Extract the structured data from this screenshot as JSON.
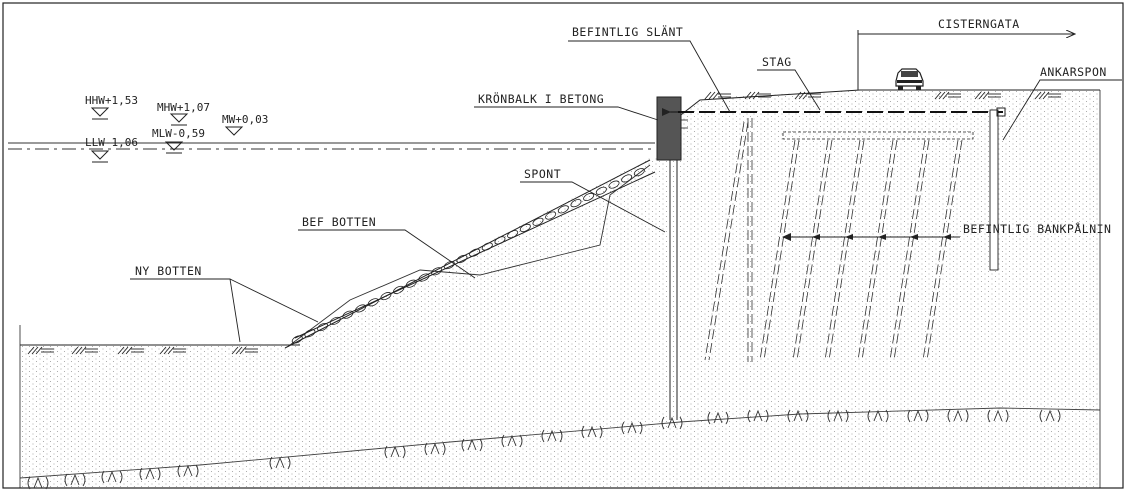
{
  "labels": {
    "cisterngata": "CISTERNGATA",
    "befintlig_slant": "BEFINTLIG SLÄNT",
    "stag": "STAG",
    "ankarspont": "ANKARSPON",
    "kronbalk": "KRÖNBALK I BETONG",
    "spont": "SPONT",
    "bef_botten": "BEF BOTTEN",
    "ny_botten": "NY BOTTEN",
    "befintlig_bankpalning": "BEFINTLIG BANKPÅLNIN"
  },
  "water_levels": {
    "hhw": "HHW+1,53",
    "mhw": "MHW+1,07",
    "mw": "MW+0,03",
    "llw": "LLW-1,06",
    "mlw": "MLW-0,59"
  },
  "symbols": {
    "vehicle": "car-icon",
    "moraine": "(/\\)"
  },
  "colors": {
    "line": "#222222",
    "concrete": "#555555",
    "soil_dots": "#9a9a9a",
    "background": "#ffffff"
  }
}
